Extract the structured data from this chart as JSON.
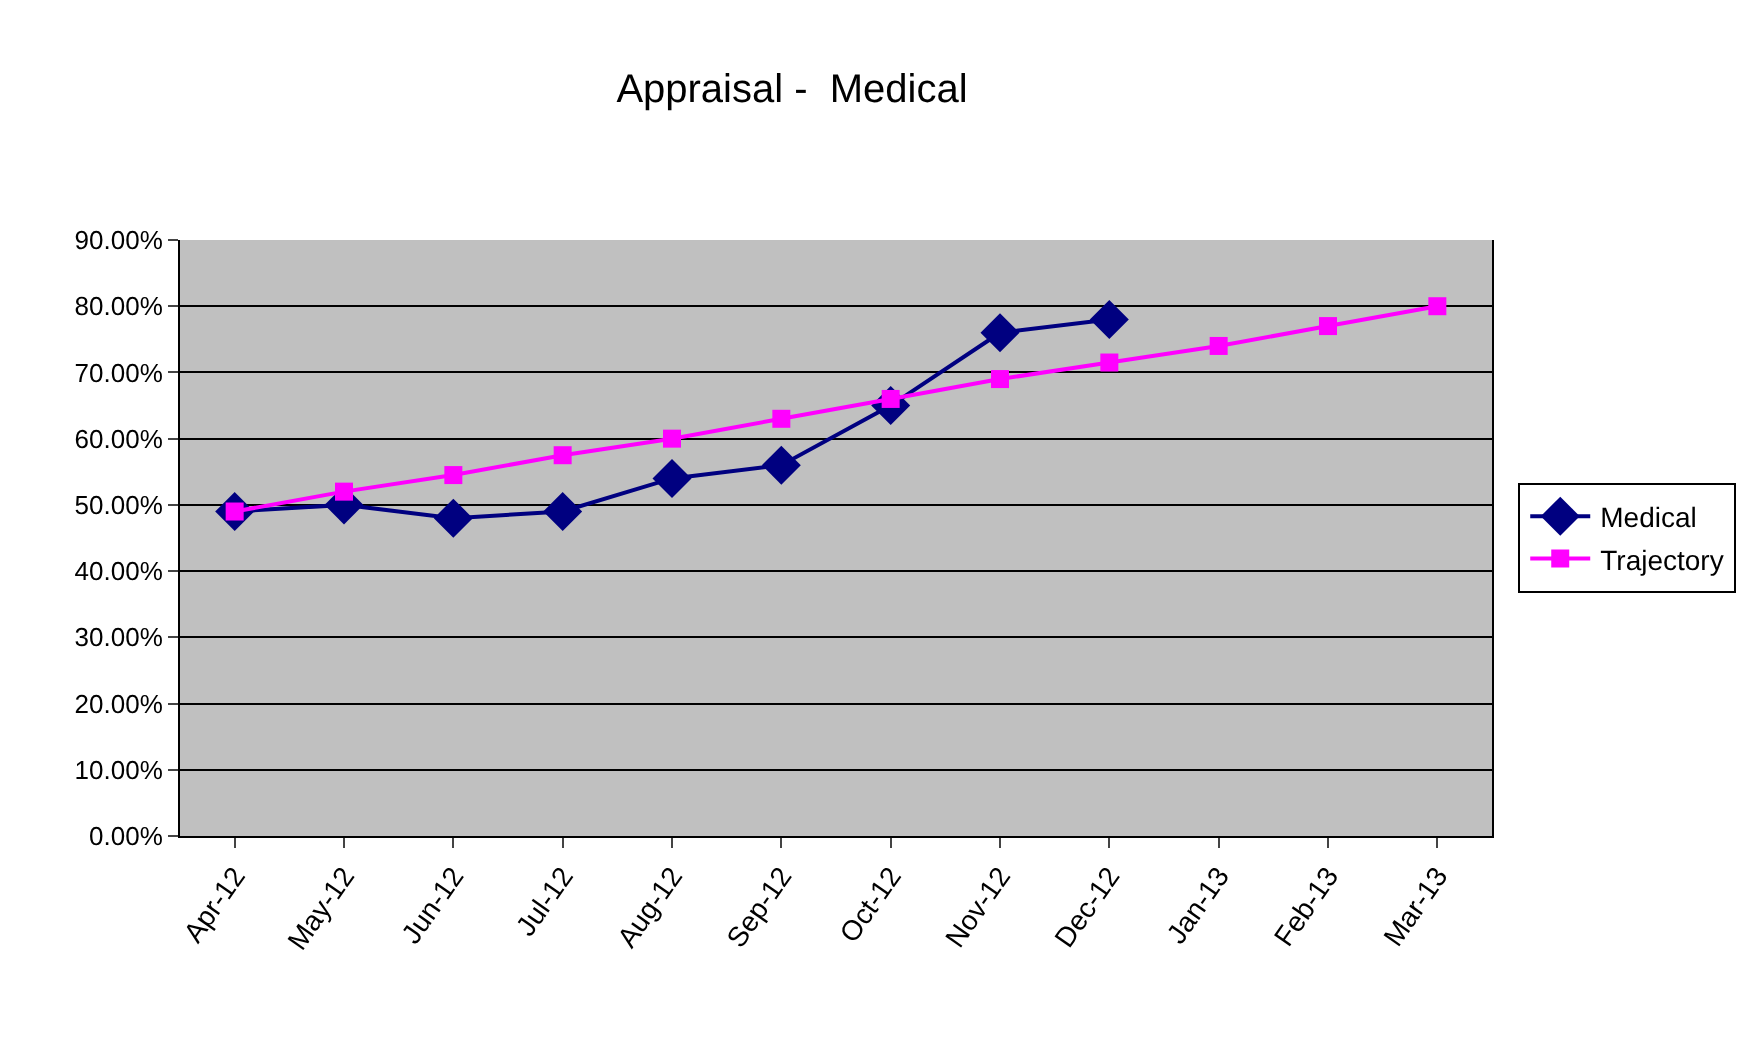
{
  "chart_data": {
    "type": "line",
    "title": "Appraisal -  Medical",
    "categories": [
      "Apr-12",
      "May-12",
      "Jun-12",
      "Jul-12",
      "Aug-12",
      "Sep-12",
      "Oct-12",
      "Nov-12",
      "Dec-12",
      "Jan-13",
      "Feb-13",
      "Mar-13"
    ],
    "series": [
      {
        "name": "Medical",
        "color": "#000080",
        "marker": "diamond",
        "values": [
          49,
          50,
          48,
          49,
          54,
          56,
          65,
          76,
          78,
          null,
          null,
          null
        ]
      },
      {
        "name": "Trajectory",
        "color": "#ff00ff",
        "marker": "square",
        "values": [
          49,
          52,
          54.5,
          57.5,
          60,
          63,
          66,
          69,
          71.5,
          74,
          77,
          80
        ]
      }
    ],
    "ylim": [
      0,
      90
    ],
    "yticks": [
      {
        "value": 0,
        "label": "0.00%"
      },
      {
        "value": 10,
        "label": "10.00%"
      },
      {
        "value": 20,
        "label": "20.00%"
      },
      {
        "value": 30,
        "label": "30.00%"
      },
      {
        "value": 40,
        "label": "40.00%"
      },
      {
        "value": 50,
        "label": "50.00%"
      },
      {
        "value": 60,
        "label": "60.00%"
      },
      {
        "value": 70,
        "label": "70.00%"
      },
      {
        "value": 80,
        "label": "80.00%"
      },
      {
        "value": 90,
        "label": "90.00%"
      }
    ],
    "grid": "y",
    "legend": "right",
    "line_style": "solid"
  }
}
